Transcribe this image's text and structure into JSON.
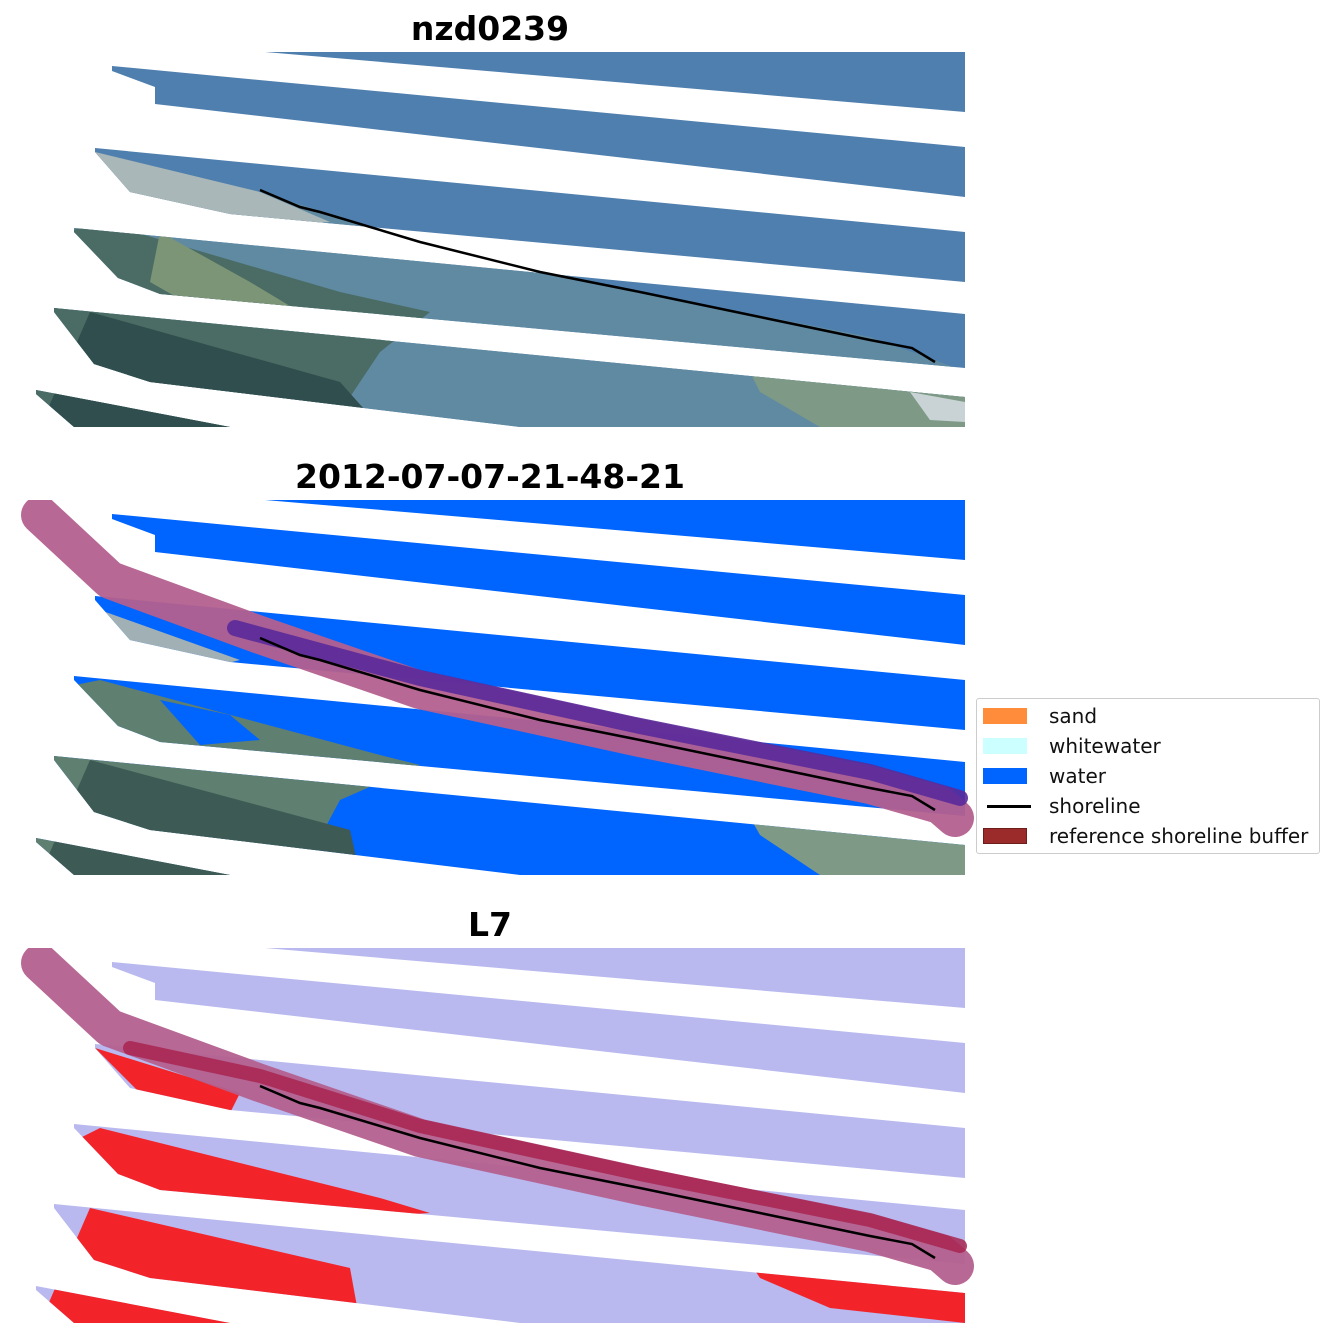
{
  "panels": [
    {
      "title": "nzd0239",
      "kind": "rgb"
    },
    {
      "title": "2012-07-07-21-48-21",
      "kind": "classified"
    },
    {
      "title": "L7",
      "kind": "mndwi"
    }
  ],
  "legend": {
    "items": [
      {
        "label": "sand",
        "type": "patch",
        "color": "#ff8c3a"
      },
      {
        "label": "whitewater",
        "type": "patch",
        "color": "#ccffff"
      },
      {
        "label": "water",
        "type": "patch",
        "color": "#0064ff"
      },
      {
        "label": "shoreline",
        "type": "line",
        "color": "#000000"
      },
      {
        "label": "reference shoreline buffer",
        "type": "patch",
        "color": "#9b2b2b",
        "edge": "#6e1d1d"
      }
    ]
  },
  "colors": {
    "ocean_rgb": "#4f7fae",
    "land_rgb": "#6b8a78",
    "water_class": "#0064ff",
    "buffer": "#b3608e",
    "shoreline_buffer_overlap": "#5a2a9a",
    "mndwi_water": "#b9b9ef",
    "mndwi_land": "#f2242a"
  }
}
